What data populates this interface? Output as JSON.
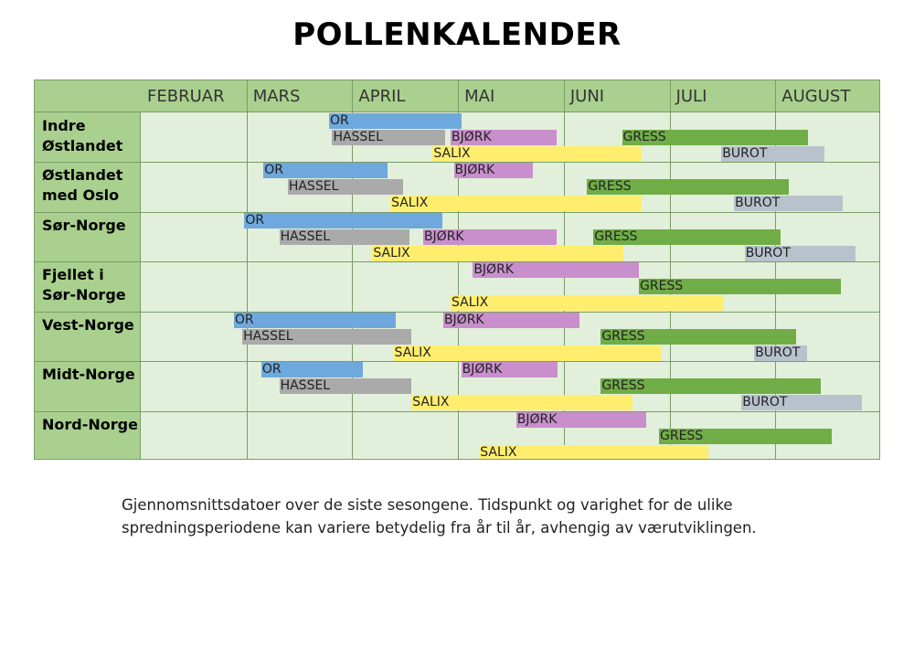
{
  "title": "POLLENKALENDER",
  "caption": "Gjennomsnittsdatoer over de siste sesongene. Tidspunkt og varighet for de ulike spredningsperiodene kan variere betydelig fra år til år, avhengig av værutviklingen.",
  "chart_data": {
    "type": "gantt",
    "title": "POLLENKALENDER",
    "x_unit": "months (0 = start of FEBRUAR, 7 = end of AUGUST)",
    "xlim": [
      0,
      7
    ],
    "months": [
      "FEBRUAR",
      "MARS",
      "APRIL",
      "MAI",
      "JUNI",
      "JULI",
      "AUGUST"
    ],
    "colors": {
      "OR": "#6fa8dc",
      "HASSEL": "#aaaaaa",
      "BJØRK": "#c88fcc",
      "SALIX": "#ffee6e",
      "GRESS": "#70ad47",
      "BUROT": "#b8c2cc"
    },
    "regions": [
      {
        "name": "Indre\nØstlandet",
        "periods": [
          {
            "pollen": "OR",
            "start": 1.78,
            "end": 3.03
          },
          {
            "pollen": "HASSEL",
            "start": 1.81,
            "end": 2.88
          },
          {
            "pollen": "BJØRK",
            "start": 2.93,
            "end": 3.93
          },
          {
            "pollen": "SALIX",
            "start": 2.76,
            "end": 4.74
          },
          {
            "pollen": "GRESS",
            "start": 4.55,
            "end": 6.31
          },
          {
            "pollen": "BUROT",
            "start": 5.49,
            "end": 6.46
          }
        ]
      },
      {
        "name": "Østlandet\nmed Oslo",
        "periods": [
          {
            "pollen": "OR",
            "start": 1.16,
            "end": 2.33
          },
          {
            "pollen": "HASSEL",
            "start": 1.39,
            "end": 2.48
          },
          {
            "pollen": "BJØRK",
            "start": 2.96,
            "end": 3.71
          },
          {
            "pollen": "SALIX",
            "start": 2.36,
            "end": 4.74
          },
          {
            "pollen": "GRESS",
            "start": 4.22,
            "end": 6.13
          },
          {
            "pollen": "BUROT",
            "start": 5.61,
            "end": 6.64
          }
        ]
      },
      {
        "name": "Sør-Norge",
        "periods": [
          {
            "pollen": "OR",
            "start": 0.98,
            "end": 2.85
          },
          {
            "pollen": "HASSEL",
            "start": 1.31,
            "end": 2.54
          },
          {
            "pollen": "BJØRK",
            "start": 2.67,
            "end": 3.93
          },
          {
            "pollen": "SALIX",
            "start": 2.19,
            "end": 4.56
          },
          {
            "pollen": "GRESS",
            "start": 4.28,
            "end": 6.05
          },
          {
            "pollen": "BUROT",
            "start": 5.71,
            "end": 6.76
          }
        ]
      },
      {
        "name": "Fjellet i\nSør-Norge",
        "periods": [
          {
            "pollen": "BJØRK",
            "start": 3.14,
            "end": 4.71
          },
          {
            "pollen": "GRESS",
            "start": 4.71,
            "end": 6.62
          },
          {
            "pollen": "SALIX",
            "start": 2.93,
            "end": 5.51
          }
        ]
      },
      {
        "name": "Vest-Norge",
        "periods": [
          {
            "pollen": "OR",
            "start": 0.88,
            "end": 2.41
          },
          {
            "pollen": "HASSEL",
            "start": 0.96,
            "end": 2.56
          },
          {
            "pollen": "BJØRK",
            "start": 2.86,
            "end": 4.15
          },
          {
            "pollen": "GRESS",
            "start": 4.35,
            "end": 6.2
          },
          {
            "pollen": "SALIX",
            "start": 2.39,
            "end": 4.92
          },
          {
            "pollen": "BUROT",
            "start": 5.8,
            "end": 6.3
          }
        ]
      },
      {
        "name": "Midt-Norge",
        "periods": [
          {
            "pollen": "OR",
            "start": 1.14,
            "end": 2.1
          },
          {
            "pollen": "HASSEL",
            "start": 1.31,
            "end": 2.56
          },
          {
            "pollen": "BJØRK",
            "start": 3.03,
            "end": 3.94
          },
          {
            "pollen": "GRESS",
            "start": 4.35,
            "end": 6.43
          },
          {
            "pollen": "SALIX",
            "start": 2.56,
            "end": 4.65
          },
          {
            "pollen": "BUROT",
            "start": 5.68,
            "end": 6.82
          }
        ]
      },
      {
        "name": "Nord-Norge",
        "periods": [
          {
            "pollen": "BJØRK",
            "start": 3.55,
            "end": 4.78
          },
          {
            "pollen": "GRESS",
            "start": 4.9,
            "end": 6.53
          },
          {
            "pollen": "SALIX",
            "start": 3.2,
            "end": 5.37
          }
        ]
      }
    ]
  }
}
